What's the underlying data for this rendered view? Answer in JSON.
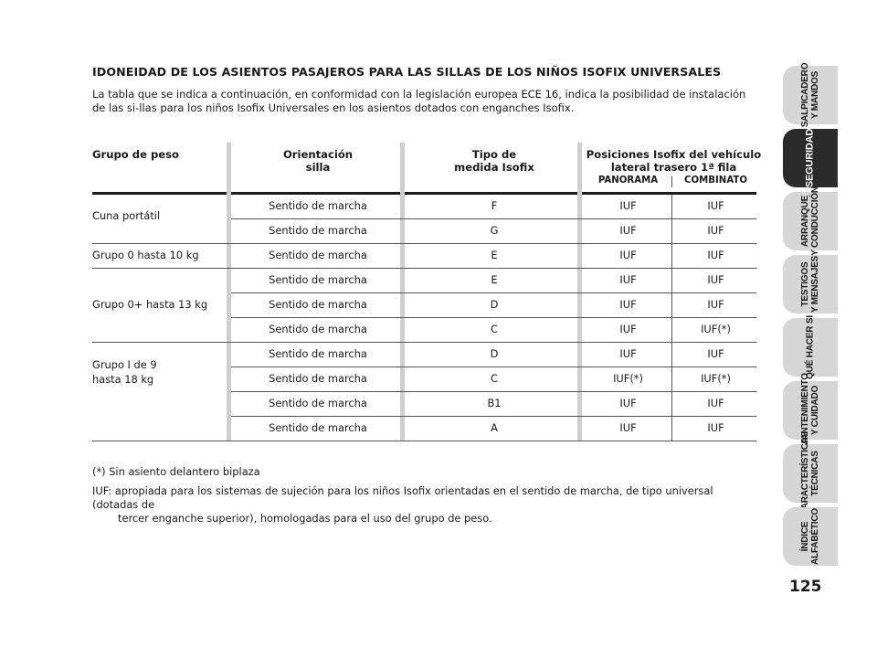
{
  "title": "IDONEIDAD DE LOS ASIENTOS PASAJEROS PARA LAS SILLAS DE LOS NIÑOS ISOFIX UNIVERSALES",
  "intro": "La tabla que se indica a continuación, en conformidad con la legislación europea ECE 16, indica la posibilidad de instalación de las si-llas para los niños Isofix Universales en los asientos dotados con enganches Isofix.",
  "table": {
    "headers": {
      "group": "Grupo de peso",
      "orientation_1": "Orientación",
      "orientation_2": "silla",
      "type_1": "Tipo de",
      "type_2": "medida Isofix",
      "positions_1": "Posiciones Isofix del vehículo",
      "positions_2": "lateral trasero 1ª fila",
      "panorama": "PANORAMA",
      "combinato": "COMBINATO"
    },
    "groups": [
      {
        "label1": "Cuna portátil",
        "label2": ""
      },
      {
        "label1": "Grupo 0 hasta 10 kg",
        "label2": ""
      },
      {
        "label1": "Grupo 0+ hasta 13 kg",
        "label2": ""
      },
      {
        "label1": "Grupo I de 9",
        "label2": "hasta 18 kg"
      }
    ],
    "rows": [
      {
        "orientation": "Sentido de marcha",
        "type": "F",
        "panorama": "IUF",
        "combinato": "IUF"
      },
      {
        "orientation": "Sentido de marcha",
        "type": "G",
        "panorama": "IUF",
        "combinato": "IUF"
      },
      {
        "orientation": "Sentido de marcha",
        "type": "E",
        "panorama": "IUF",
        "combinato": "IUF"
      },
      {
        "orientation": "Sentido de marcha",
        "type": "E",
        "panorama": "IUF",
        "combinato": "IUF"
      },
      {
        "orientation": "Sentido de marcha",
        "type": "D",
        "panorama": "IUF",
        "combinato": "IUF"
      },
      {
        "orientation": "Sentido de marcha",
        "type": "C",
        "panorama": "IUF",
        "combinato": "IUF(*)"
      },
      {
        "orientation": "Sentido de marcha",
        "type": "D",
        "panorama": "IUF",
        "combinato": "IUF"
      },
      {
        "orientation": "Sentido de marcha",
        "type": "C",
        "panorama": "IUF(*)",
        "combinato": "IUF(*)"
      },
      {
        "orientation": "Sentido de marcha",
        "type": "B1",
        "panorama": "IUF",
        "combinato": "IUF"
      },
      {
        "orientation": "Sentido de marcha",
        "type": "A",
        "panorama": "IUF",
        "combinato": "IUF"
      }
    ]
  },
  "notes": {
    "note1": "(*) Sin asiento delantero biplaza",
    "note2_a": "IUF: apropiada para los sistemas de sujeción para los niños Isofix orientadas en el sentido de marcha, de tipo universal (dotadas de",
    "note2_b": "tercer enganche superior), homologadas para el uso del grupo de peso."
  },
  "side_tabs": [
    {
      "line1": "SALPICADERO",
      "line2": "Y MANDOS"
    },
    {
      "line1": "SEGURIDAD",
      "line2": ""
    },
    {
      "line1": "ARRANQUE",
      "line2": "Y CONDUCCIÓN"
    },
    {
      "line1": "TESTIGOS",
      "line2": "Y MENSAJES"
    },
    {
      "line1": "QUÉ HACER SI",
      "line2": ""
    },
    {
      "line1": "MANTENIMIENTO",
      "line2": "Y CUIDADO"
    },
    {
      "line1": "CARACTERÍSTICAS",
      "line2": "TÉCNICAS"
    },
    {
      "line1": "ÍNDICE",
      "line2": "ALFABÉTICO"
    }
  ],
  "page_number": "125"
}
